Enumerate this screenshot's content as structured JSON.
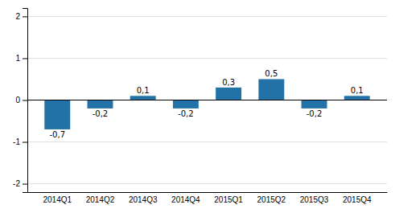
{
  "chart_data": {
    "type": "bar",
    "categories": [
      "2014Q1",
      "2014Q2",
      "2014Q3",
      "2014Q4",
      "2015Q1",
      "2015Q2",
      "2015Q3",
      "2015Q4"
    ],
    "values": [
      -0.7,
      -0.2,
      0.1,
      -0.2,
      0.3,
      0.5,
      -0.2,
      0.1
    ],
    "value_labels": [
      "-0,7",
      "-0,2",
      "0,1",
      "-0,2",
      "0,3",
      "0,5",
      "-0,2",
      "0,1"
    ],
    "color": "#2272a8",
    "ylim": [
      -2.2,
      2.2
    ],
    "yticks": [
      -2,
      -1,
      0,
      1,
      2
    ],
    "grid": true,
    "data_labels": true
  }
}
